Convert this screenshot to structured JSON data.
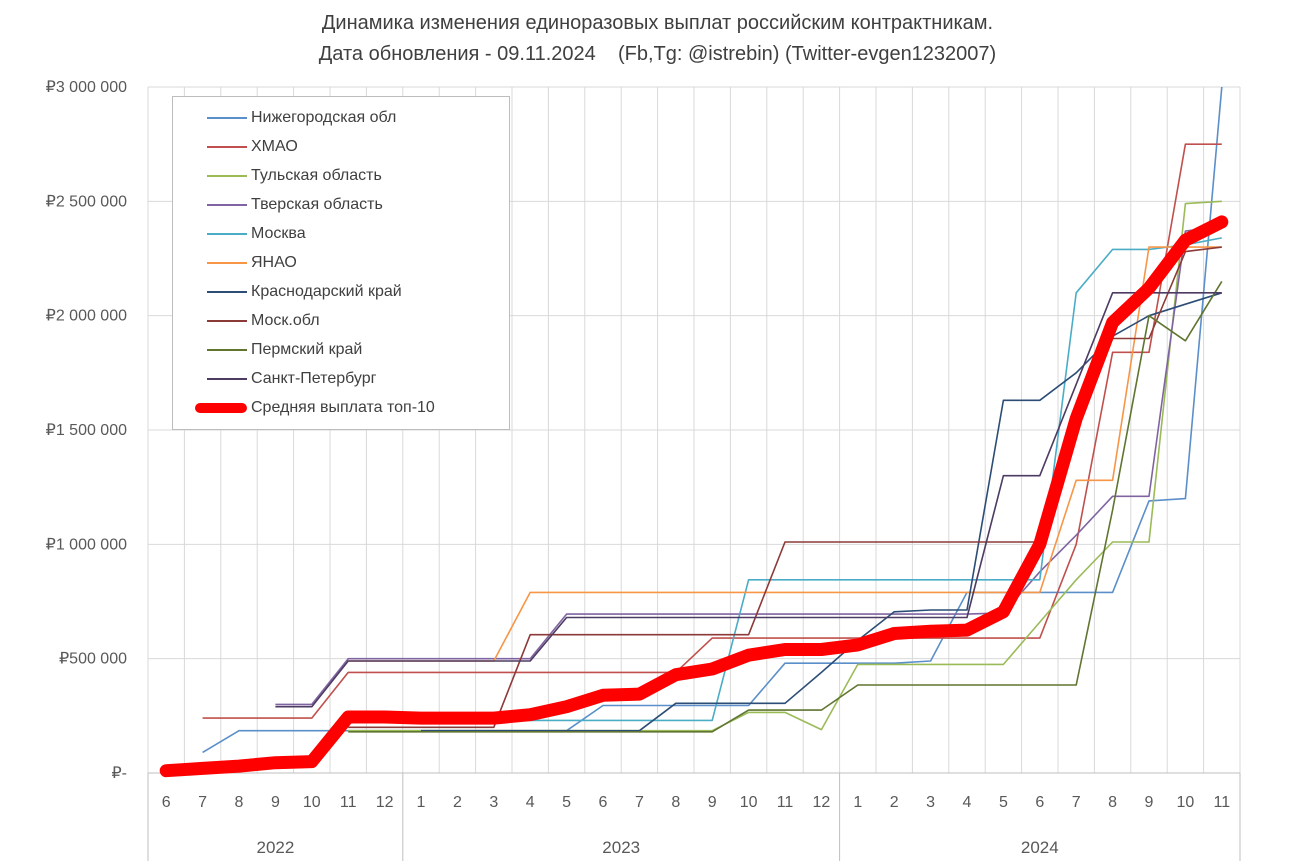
{
  "title": {
    "line1": "Динамика изменения единоразовых выплат российским контрактникам.",
    "line2": "Дата обновления - 09.11.2024    (Fb,Tg: @istrebin) (Twitter-evgen1232007)"
  },
  "y_axis": {
    "tick_labels": [
      "₽3 000 000",
      "₽2 500 000",
      "₽2 000 000",
      "₽1 500 000",
      "₽1 000 000",
      "₽500 000",
      "₽-"
    ],
    "tick_values": [
      3000000,
      2500000,
      2000000,
      1500000,
      1000000,
      500000,
      0
    ]
  },
  "x_axis": {
    "month_labels": [
      "6",
      "7",
      "8",
      "9",
      "10",
      "11",
      "12",
      "1",
      "2",
      "3",
      "4",
      "5",
      "6",
      "7",
      "8",
      "9",
      "10",
      "11",
      "12",
      "1",
      "2",
      "3",
      "4",
      "5",
      "6",
      "7",
      "8",
      "9",
      "10",
      "11"
    ],
    "year_groups": [
      {
        "label": "2022",
        "months": 7
      },
      {
        "label": "2023",
        "months": 12
      },
      {
        "label": "2024",
        "months": 11
      }
    ]
  },
  "chart_data": {
    "type": "line",
    "title": "Динамика изменения единоразовых выплат российским контрактникам.",
    "subtitle": "Дата обновления - 09.11.2024 (Fb,Tg: @istrebin) (Twitter-evgen1232007)",
    "currency": "₽",
    "ylim": [
      0,
      3000000
    ],
    "grid": true,
    "legend_position": "top-left",
    "categories": [
      "2022-06",
      "2022-07",
      "2022-08",
      "2022-09",
      "2022-10",
      "2022-11",
      "2022-12",
      "2023-01",
      "2023-02",
      "2023-03",
      "2023-04",
      "2023-05",
      "2023-06",
      "2023-07",
      "2023-08",
      "2023-09",
      "2023-10",
      "2023-11",
      "2023-12",
      "2024-01",
      "2024-02",
      "2024-03",
      "2024-04",
      "2024-05",
      "2024-06",
      "2024-07",
      "2024-08",
      "2024-09",
      "2024-10",
      "2024-11"
    ],
    "series": [
      {
        "name": "Нижегородская обл",
        "color": "#5b8fc9",
        "thick": false,
        "values": [
          null,
          90000,
          185000,
          185000,
          185000,
          185000,
          185000,
          185000,
          185000,
          185000,
          185000,
          185000,
          295000,
          295000,
          295000,
          295000,
          295000,
          480000,
          480000,
          480000,
          480000,
          490000,
          790000,
          790000,
          790000,
          790000,
          790000,
          1190000,
          1200000,
          3000000
        ]
      },
      {
        "name": "ХМАО",
        "color": "#c0504d",
        "thick": false,
        "values": [
          null,
          240000,
          240000,
          240000,
          240000,
          440000,
          440000,
          440000,
          440000,
          440000,
          440000,
          440000,
          440000,
          440000,
          440000,
          590000,
          590000,
          590000,
          590000,
          590000,
          590000,
          590000,
          590000,
          590000,
          590000,
          1000000,
          1840000,
          1840000,
          2750000,
          2750000
        ]
      },
      {
        "name": "Тульская область",
        "color": "#9bbb59",
        "thick": false,
        "values": [
          null,
          null,
          null,
          null,
          null,
          185000,
          185000,
          185000,
          185000,
          185000,
          185000,
          185000,
          185000,
          185000,
          185000,
          185000,
          265000,
          265000,
          190000,
          475000,
          475000,
          475000,
          475000,
          475000,
          660000,
          845000,
          1010000,
          1010000,
          2490000,
          2500000
        ]
      },
      {
        "name": "Тверская область",
        "color": "#8064a2",
        "thick": false,
        "values": [
          null,
          null,
          null,
          300000,
          300000,
          500000,
          500000,
          500000,
          500000,
          500000,
          500000,
          695000,
          695000,
          695000,
          695000,
          695000,
          695000,
          695000,
          695000,
          695000,
          695000,
          695000,
          695000,
          700000,
          880000,
          1040000,
          1210000,
          1210000,
          2370000,
          2390000
        ]
      },
      {
        "name": "Москва",
        "color": "#4bacc6",
        "thick": false,
        "values": [
          null,
          null,
          null,
          null,
          null,
          null,
          null,
          230000,
          230000,
          230000,
          230000,
          230000,
          230000,
          230000,
          230000,
          230000,
          845000,
          845000,
          845000,
          845000,
          845000,
          845000,
          845000,
          845000,
          845000,
          2100000,
          2290000,
          2290000,
          2310000,
          2340000
        ]
      },
      {
        "name": "ЯНАО",
        "color": "#f79646",
        "thick": false,
        "values": [
          null,
          null,
          null,
          null,
          null,
          490000,
          490000,
          490000,
          490000,
          490000,
          790000,
          790000,
          790000,
          790000,
          790000,
          790000,
          790000,
          790000,
          790000,
          790000,
          790000,
          790000,
          790000,
          790000,
          790000,
          1280000,
          1280000,
          2300000,
          2300000,
          2300000
        ]
      },
      {
        "name": "Краснодарский край",
        "color": "#2c4d75",
        "thick": false,
        "values": [
          null,
          null,
          null,
          null,
          null,
          null,
          null,
          185000,
          185000,
          185000,
          185000,
          185000,
          185000,
          185000,
          305000,
          305000,
          305000,
          305000,
          440000,
          580000,
          705000,
          713000,
          713000,
          1630000,
          1630000,
          1750000,
          1910000,
          2000000,
          2050000,
          2100000
        ]
      },
      {
        "name": "Моск.обл",
        "color": "#8c3a38",
        "thick": false,
        "values": [
          null,
          null,
          null,
          null,
          null,
          200000,
          200000,
          200000,
          200000,
          200000,
          605000,
          605000,
          605000,
          605000,
          605000,
          605000,
          605000,
          1010000,
          1010000,
          1010000,
          1010000,
          1010000,
          1010000,
          1010000,
          1010000,
          1500000,
          1900000,
          1900000,
          2280000,
          2300000
        ]
      },
      {
        "name": "Пермский край",
        "color": "#5f7530",
        "thick": false,
        "values": [
          null,
          null,
          null,
          null,
          null,
          180000,
          180000,
          180000,
          180000,
          180000,
          180000,
          180000,
          180000,
          180000,
          180000,
          180000,
          275000,
          275000,
          275000,
          385000,
          385000,
          385000,
          385000,
          385000,
          385000,
          385000,
          1150000,
          2000000,
          1890000,
          2150000
        ]
      },
      {
        "name": "Санкт-Петербург",
        "color": "#4d3b62",
        "thick": false,
        "values": [
          null,
          null,
          null,
          290000,
          290000,
          490000,
          490000,
          490000,
          490000,
          490000,
          490000,
          680000,
          680000,
          680000,
          680000,
          680000,
          680000,
          680000,
          680000,
          680000,
          680000,
          680000,
          680000,
          1300000,
          1300000,
          1700000,
          2100000,
          2100000,
          2100000,
          2100000
        ]
      },
      {
        "name": "Средняя выплата топ-10",
        "color": "#ff0000",
        "thick": true,
        "values": [
          10000,
          20000,
          30000,
          45000,
          50000,
          245000,
          245000,
          240000,
          240000,
          240000,
          255000,
          290000,
          340000,
          345000,
          430000,
          455000,
          515000,
          540000,
          540000,
          560000,
          610000,
          620000,
          625000,
          705000,
          1000000,
          1550000,
          1970000,
          2120000,
          2330000,
          2410000
        ]
      }
    ],
    "colors": {
      "grid": "#d9d9d9",
      "axis": "#bfbfbf",
      "tick_text": "#595959",
      "title_text": "#3f3f3f"
    }
  }
}
